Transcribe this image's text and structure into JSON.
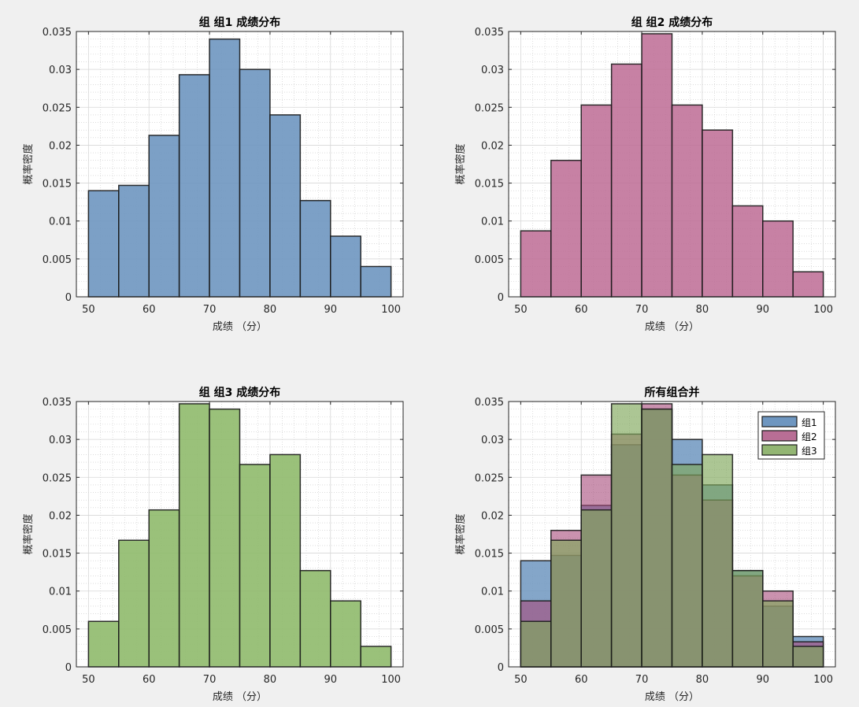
{
  "bin_edges": [
    50,
    55,
    60,
    65,
    70,
    75,
    80,
    85,
    90,
    95,
    100
  ],
  "colors": {
    "g1": "#6e96c0",
    "g2": "#bd6b94",
    "g3": "#8fba6b",
    "background": "#f0f0f0",
    "axes_bg": "#ffffff"
  },
  "chart_data": [
    {
      "type": "bar",
      "title": "组 组1 成绩分布",
      "xlabel": "成绩 （分）",
      "ylabel": "概率密度",
      "xlim": [
        48,
        102
      ],
      "ylim": [
        0,
        0.035
      ],
      "xticks": [
        50,
        60,
        70,
        80,
        90,
        100
      ],
      "yticks": [
        0,
        0.005,
        0.01,
        0.015,
        0.02,
        0.025,
        0.03,
        0.035
      ],
      "series": [
        {
          "name": "组1",
          "color": "#6e96c0",
          "opacity": 0.9,
          "values": [
            0.014,
            0.0147,
            0.0213,
            0.0293,
            0.034,
            0.03,
            0.024,
            0.0127,
            0.008,
            0.004
          ]
        }
      ]
    },
    {
      "type": "bar",
      "title": "组 组2 成绩分布",
      "xlabel": "成绩 （分）",
      "ylabel": "概率密度",
      "xlim": [
        48,
        102
      ],
      "ylim": [
        0,
        0.035
      ],
      "xticks": [
        50,
        60,
        70,
        80,
        90,
        100
      ],
      "yticks": [
        0,
        0.005,
        0.01,
        0.015,
        0.02,
        0.025,
        0.03,
        0.035
      ],
      "series": [
        {
          "name": "组2",
          "color": "#bd6b94",
          "opacity": 0.85,
          "values": [
            0.0087,
            0.018,
            0.0253,
            0.0307,
            0.0347,
            0.0253,
            0.022,
            0.012,
            0.01,
            0.0033
          ]
        }
      ]
    },
    {
      "type": "bar",
      "title": "组 组3 成绩分布",
      "xlabel": "成绩 （分）",
      "ylabel": "概率密度",
      "xlim": [
        48,
        102
      ],
      "ylim": [
        0,
        0.035
      ],
      "xticks": [
        50,
        60,
        70,
        80,
        90,
        100
      ],
      "yticks": [
        0,
        0.005,
        0.01,
        0.015,
        0.02,
        0.025,
        0.03,
        0.035
      ],
      "series": [
        {
          "name": "组3",
          "color": "#8fba6b",
          "opacity": 0.9,
          "values": [
            0.006,
            0.0167,
            0.0207,
            0.0347,
            0.034,
            0.0267,
            0.028,
            0.0127,
            0.0087,
            0.0027
          ]
        }
      ]
    },
    {
      "type": "bar",
      "title": "所有组合并",
      "xlabel": "成绩 （分）",
      "ylabel": "概率密度",
      "xlim": [
        48,
        102
      ],
      "ylim": [
        0,
        0.035
      ],
      "xticks": [
        50,
        60,
        70,
        80,
        90,
        100
      ],
      "yticks": [
        0,
        0.005,
        0.01,
        0.015,
        0.02,
        0.025,
        0.03,
        0.035
      ],
      "legend_position": "top-right",
      "series": [
        {
          "name": "组1",
          "color": "#6e96c0",
          "opacity": 0.85,
          "values": [
            0.014,
            0.0147,
            0.0213,
            0.0293,
            0.034,
            0.03,
            0.024,
            0.0127,
            0.008,
            0.004
          ]
        },
        {
          "name": "组2",
          "color": "#a64a7a",
          "opacity": 0.6,
          "values": [
            0.0087,
            0.018,
            0.0253,
            0.0307,
            0.0347,
            0.0253,
            0.022,
            0.012,
            0.01,
            0.0033
          ]
        },
        {
          "name": "组3",
          "color": "#7fa85a",
          "opacity": 0.65,
          "values": [
            0.006,
            0.0167,
            0.0207,
            0.0347,
            0.034,
            0.0267,
            0.028,
            0.0127,
            0.0087,
            0.0027
          ]
        }
      ]
    }
  ]
}
